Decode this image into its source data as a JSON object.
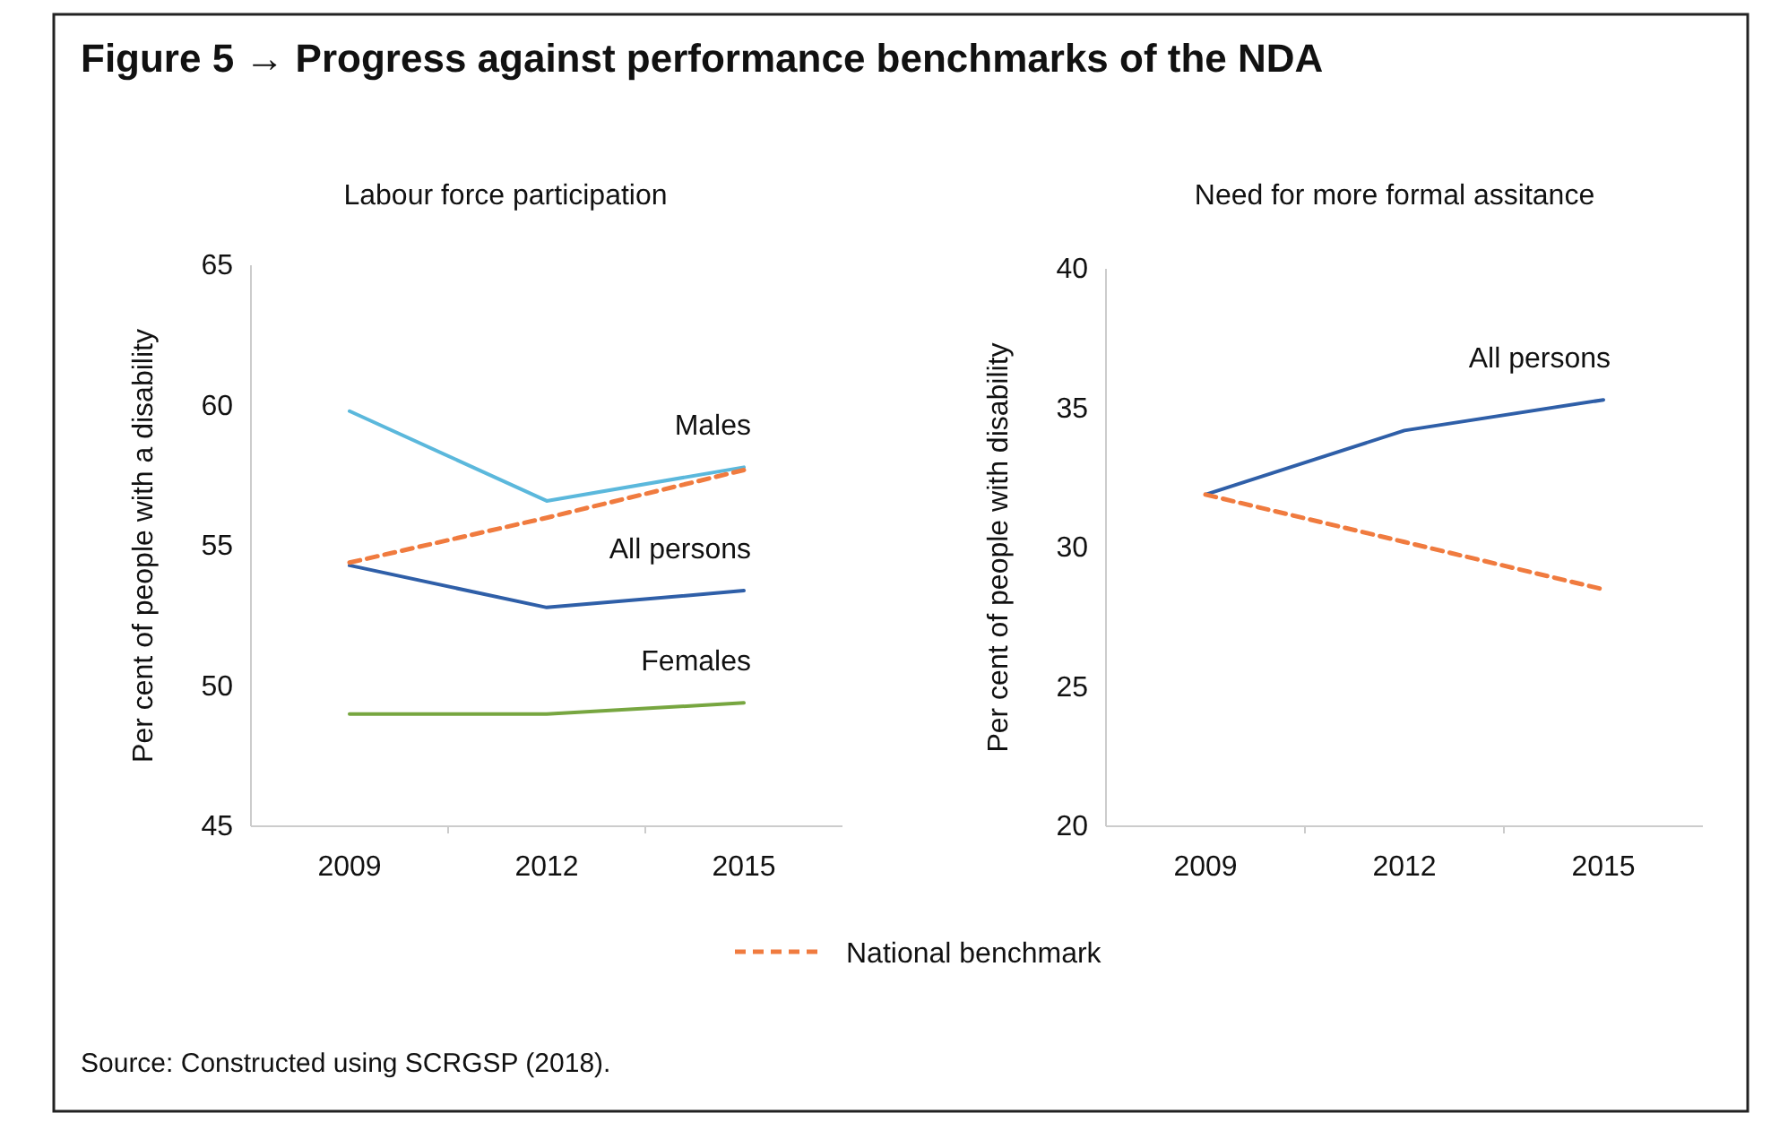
{
  "chart_data": [
    {
      "type": "line",
      "title": "Figure 5 → Progress against performance benchmarks of the NDA",
      "subtitle": "Labour force participation",
      "ylabel": "Per cent of people with a disability",
      "categories": [
        "2009",
        "2012",
        "2015"
      ],
      "series": [
        {
          "name": "Males",
          "color": "#5bb8dc",
          "values": [
            59.8,
            56.6,
            57.8
          ],
          "line_style": "solid"
        },
        {
          "name": "All persons",
          "color": "#2f5fa8",
          "values": [
            54.3,
            52.8,
            53.4
          ],
          "line_style": "solid"
        },
        {
          "name": "Females",
          "color": "#77a640",
          "values": [
            49.0,
            49.0,
            49.4
          ],
          "line_style": "solid"
        },
        {
          "name": "National benchmark",
          "color": "#f07b3f",
          "values": [
            54.4,
            56.0,
            57.7
          ],
          "line_style": "dashed"
        }
      ],
      "ylim": [
        45,
        65
      ],
      "yticks": [
        45,
        50,
        55,
        60,
        65
      ],
      "grid": false,
      "legend": "bottom",
      "annotations": [
        "Source: Constructed using SCRGSP (2018)."
      ]
    },
    {
      "type": "line",
      "subtitle": "Need for more formal assitance",
      "ylabel": "Per cent of people with disability",
      "categories": [
        "2009",
        "2012",
        "2015"
      ],
      "series": [
        {
          "name": "All persons",
          "color": "#2f5fa8",
          "values": [
            31.9,
            34.2,
            35.3
          ],
          "line_style": "solid"
        },
        {
          "color": "#f07b3f",
          "values": [
            31.9,
            30.2,
            28.5
          ],
          "line_style": "dashed"
        }
      ],
      "ylim": [
        20,
        40
      ],
      "yticks": [
        20,
        25,
        30,
        35,
        40
      ],
      "grid": false,
      "legend": false
    }
  ]
}
